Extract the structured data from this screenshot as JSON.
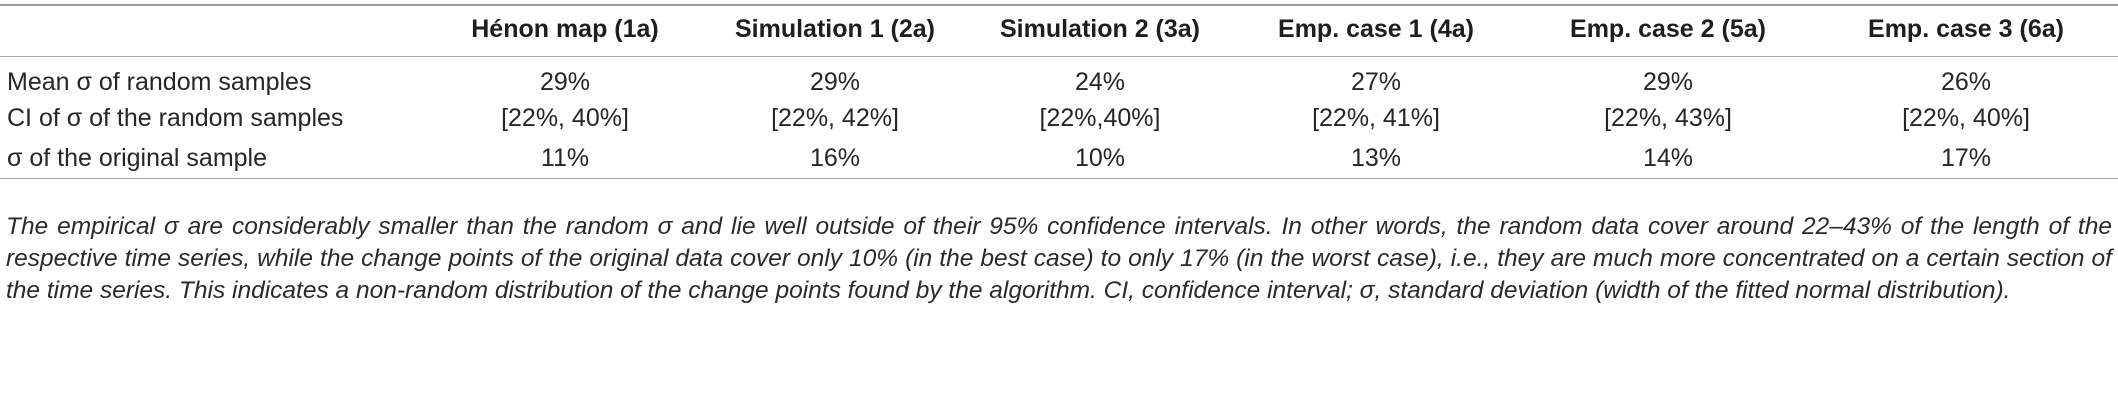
{
  "table": {
    "columns": [
      "",
      "Hénon map (1a)",
      "Simulation 1 (2a)",
      "Simulation 2 (3a)",
      "Emp. case 1 (4a)",
      "Emp. case 2 (5a)",
      "Emp. case 3 (6a)"
    ],
    "rows": [
      {
        "label": "Mean σ of random samples",
        "values": [
          "29%",
          "29%",
          "24%",
          "27%",
          "29%",
          "26%"
        ]
      },
      {
        "label": "CI of σ of the random samples",
        "values": [
          "[22%, 40%]",
          "[22%, 42%]",
          "[22%,40%]",
          "[22%, 41%]",
          "[22%, 43%]",
          "[22%, 40%]"
        ]
      },
      {
        "label": "σ of the original sample",
        "values": [
          "11%",
          "16%",
          "10%",
          "13%",
          "14%",
          "17%"
        ]
      }
    ]
  },
  "caption": "The empirical σ are considerably smaller than the random σ and lie well outside of their 95% confidence intervals. In other words, the random data cover around 22–43% of the length of the respective time series, while the change points of the original data cover only 10% (in the best case) to only 17% (in the worst case), i.e., they are much more concentrated on a certain section of the time series. This indicates a non-random distribution of the change points found by the algorithm. CI, confidence interval; σ, standard deviation (width of the fitted normal distribution)."
}
